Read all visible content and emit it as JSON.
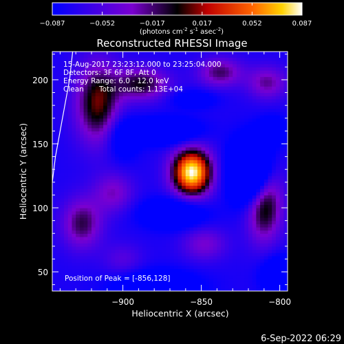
{
  "chart_data": {
    "type": "heatmap",
    "title": "Reconstructed RHESSI Image",
    "xlabel": "Heliocentric X (arcsec)",
    "ylabel": "Heliocentric Y (arcsec)",
    "xlim": [
      -945,
      -795
    ],
    "ylim": [
      35,
      222
    ],
    "xticks": [
      -900,
      -850,
      -800
    ],
    "yticks": [
      50,
      100,
      150,
      200
    ],
    "colorbar": {
      "ticks": [
        "-0.087",
        "-0.052",
        "-0.017",
        "0.017",
        "0.052",
        "0.087"
      ],
      "range": [
        -0.087,
        0.087
      ],
      "unit_text": "(photons cm",
      "unit_sup1": "-2",
      "unit_mid1": " s",
      "unit_sup2": "-1",
      "unit_mid2": " asec",
      "unit_sup3": "-2",
      "unit_end": ")"
    },
    "annotations": {
      "time": "15-Aug-2017 23:23:12.000 to 23:25:04.000",
      "detectors": "Detectors: 3F 6F 8F, Att 0",
      "energy": "Energy Range: 6.0 - 12.0 keV",
      "method": "Clean",
      "counts": "Total counts: 1.13E+04",
      "peak": "Position of Peak = [-856,128]"
    },
    "peak": {
      "x": -856,
      "y": 128,
      "value": 0.087
    },
    "components": [
      {
        "x": -856,
        "y": 128,
        "sx": 9,
        "sy": 13,
        "amp": 0.087
      },
      {
        "x": -916,
        "y": 182,
        "sx": 10,
        "sy": 22,
        "amp": 0.046
      },
      {
        "x": -888,
        "y": 197,
        "sx": 12,
        "sy": 9,
        "amp": 0.038
      },
      {
        "x": -838,
        "y": 206,
        "sx": 10,
        "sy": 8,
        "amp": 0.032
      },
      {
        "x": -808,
        "y": 198,
        "sx": 9,
        "sy": 9,
        "amp": 0.028
      },
      {
        "x": -810,
        "y": 107,
        "sx": 8,
        "sy": 22,
        "amp": 0.052
      },
      {
        "x": -906,
        "y": 112,
        "sx": 9,
        "sy": 11,
        "amp": 0.024
      },
      {
        "x": -926,
        "y": 88,
        "sx": 9,
        "sy": 14,
        "amp": 0.034
      },
      {
        "x": -900,
        "y": 60,
        "sx": 9,
        "sy": 9,
        "amp": 0.014
      },
      {
        "x": -848,
        "y": 72,
        "sx": 10,
        "sy": 9,
        "amp": 0.022
      },
      {
        "x": -872,
        "y": 160,
        "sx": 14,
        "sy": 7,
        "amp": -0.036
      },
      {
        "x": -818,
        "y": 128,
        "sx": 9,
        "sy": 16,
        "amp": -0.08
      },
      {
        "x": -868,
        "y": 96,
        "sx": 14,
        "sy": 8,
        "amp": -0.032
      },
      {
        "x": -900,
        "y": 155,
        "sx": 7,
        "sy": 12,
        "amp": -0.022
      },
      {
        "x": -878,
        "y": 38,
        "sx": 18,
        "sy": 9,
        "amp": -0.03
      },
      {
        "x": -800,
        "y": 48,
        "sx": 8,
        "sy": 10,
        "amp": -0.03
      },
      {
        "x": -805,
        "y": 160,
        "sx": 7,
        "sy": 8,
        "amp": -0.022
      },
      {
        "x": -855,
        "y": 185,
        "sx": 10,
        "sy": 5,
        "amp": -0.018
      }
    ],
    "limb_curve": [
      [
        -932,
        222
      ],
      [
        -934,
        200
      ],
      [
        -937,
        180
      ],
      [
        -940,
        160
      ],
      [
        -943,
        140
      ],
      [
        -945,
        120
      ]
    ],
    "grid": false
  },
  "footer": {
    "timestamp": "6-Sep-2022 06:29"
  }
}
